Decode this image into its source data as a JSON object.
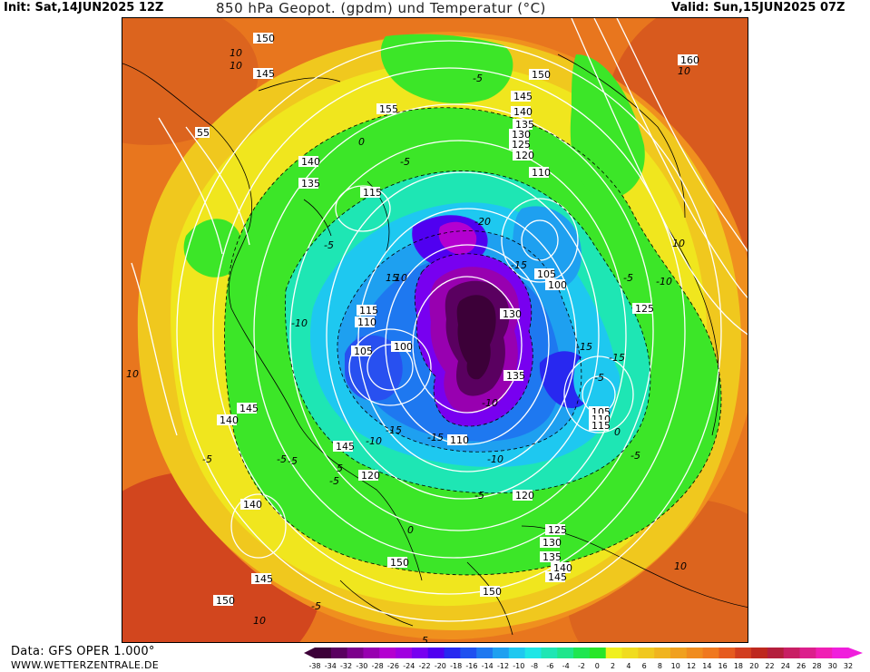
{
  "header": {
    "init": "Init: Sat,14JUN2025 12Z",
    "title": "850 hPa Geopot. (gpdm) und Temperatur (°C)",
    "valid": "Valid: Sun,15JUN2025 07Z"
  },
  "footer": {
    "source": "Data: GFS OPER 1.000°",
    "url": "WWW.WETTERZENTRALE.DE"
  },
  "colorbar": {
    "ticks": [
      "-38",
      "-34",
      "-32",
      "-30",
      "-28",
      "-26",
      "-24",
      "-22",
      "-20",
      "-18",
      "-16",
      "-14",
      "-12",
      "-10",
      "-8",
      "-6",
      "-4",
      "-2",
      "0",
      "2",
      "4",
      "6",
      "8",
      "10",
      "12",
      "14",
      "16",
      "18",
      "20",
      "22",
      "24",
      "26",
      "28",
      "30",
      "32"
    ],
    "colors": [
      "#3c0038",
      "#5a0060",
      "#7c008c",
      "#9800b0",
      "#b400d0",
      "#a000e0",
      "#7800f0",
      "#5000f0",
      "#2828f0",
      "#1e50f0",
      "#1e78f0",
      "#1ea0f0",
      "#1ec8f0",
      "#1ee6e6",
      "#1ee6b4",
      "#1ee68c",
      "#1ee650",
      "#28e628",
      "#f0f01e",
      "#f0dc1e",
      "#f0c81e",
      "#f0b41e",
      "#f0a01e",
      "#f08c1e",
      "#f0781e",
      "#e65a1e",
      "#d23c1e",
      "#be281e",
      "#b41e3c",
      "#c81e64",
      "#dc1e8c",
      "#f01eb4",
      "#f01edc"
    ]
  },
  "geopotential_labels": [
    "150",
    "145",
    "155",
    "160",
    "55",
    "140",
    "135",
    "115",
    "150",
    "145",
    "140",
    "135",
    "130",
    "125",
    "120",
    "110",
    "115",
    "110",
    "105",
    "100",
    "130",
    "125",
    "105",
    "100",
    "135",
    "145",
    "140",
    "105",
    "110",
    "115",
    "120",
    "110",
    "120",
    "125",
    "130",
    "135",
    "140",
    "145",
    "150",
    "145",
    "150",
    "150",
    "140",
    "145"
  ],
  "temperature_labels": [
    "10",
    "10",
    "-5",
    "0",
    "-5",
    "-5",
    "-20",
    "-15",
    "10",
    "15",
    "10",
    "-10",
    "10",
    "-10",
    "-5",
    "-15",
    "-10",
    "-5",
    "-15",
    "-15",
    "-10",
    "-5",
    "0",
    "-5",
    "-5",
    "0",
    "10",
    "5",
    "-5",
    "-5",
    "10",
    "-10",
    "-5",
    "10",
    "-15",
    "-5",
    "5"
  ]
}
